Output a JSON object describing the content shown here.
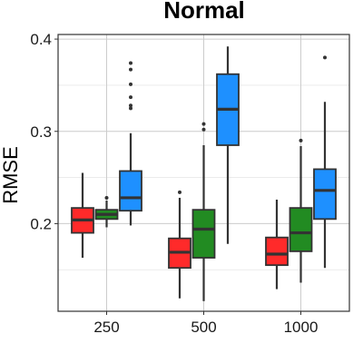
{
  "chart_data": {
    "type": "box",
    "title": "Normal",
    "xlabel": "",
    "ylabel": "RMSE",
    "ylim": [
      0.105,
      0.405
    ],
    "yticks": [
      0.2,
      0.3,
      0.4
    ],
    "ytick_labels": [
      "0.2",
      "0.3",
      "0.4"
    ],
    "grid": true,
    "categories": [
      "250",
      "500",
      "1000"
    ],
    "series": [
      {
        "color": "#ff2a2a",
        "boxes": [
          {
            "whisker_low": 0.163,
            "q1": 0.19,
            "median": 0.204,
            "q3": 0.217,
            "whisker_high": 0.255,
            "outliers": []
          },
          {
            "whisker_low": 0.119,
            "q1": 0.152,
            "median": 0.169,
            "q3": 0.184,
            "whisker_high": 0.228,
            "outliers": [
              0.234
            ]
          },
          {
            "whisker_low": 0.129,
            "q1": 0.155,
            "median": 0.167,
            "q3": 0.185,
            "whisker_high": 0.226,
            "outliers": []
          }
        ]
      },
      {
        "color": "#228b22",
        "boxes": [
          {
            "whisker_low": 0.196,
            "q1": 0.205,
            "median": 0.21,
            "q3": 0.215,
            "whisker_high": 0.225,
            "outliers": [
              0.228
            ]
          },
          {
            "whisker_low": 0.116,
            "q1": 0.163,
            "median": 0.194,
            "q3": 0.215,
            "whisker_high": 0.285,
            "outliers": [
              0.302,
              0.308
            ]
          },
          {
            "whisker_low": 0.136,
            "q1": 0.17,
            "median": 0.19,
            "q3": 0.217,
            "whisker_high": 0.284,
            "outliers": [
              0.29
            ]
          }
        ]
      },
      {
        "color": "#1e90ff",
        "boxes": [
          {
            "whisker_low": 0.198,
            "q1": 0.214,
            "median": 0.228,
            "q3": 0.257,
            "whisker_high": 0.298,
            "outliers": [
              0.325,
              0.328,
              0.337,
              0.351,
              0.367,
              0.374
            ]
          },
          {
            "whisker_low": 0.178,
            "q1": 0.285,
            "median": 0.324,
            "q3": 0.362,
            "whisker_high": 0.392,
            "outliers": []
          },
          {
            "whisker_low": 0.152,
            "q1": 0.205,
            "median": 0.236,
            "q3": 0.259,
            "whisker_high": 0.332,
            "outliers": [
              0.38
            ]
          }
        ]
      }
    ],
    "colors": {
      "border": "#333333",
      "grid_major": "#cccccc",
      "grid_minor": "#e8e8e8"
    }
  }
}
